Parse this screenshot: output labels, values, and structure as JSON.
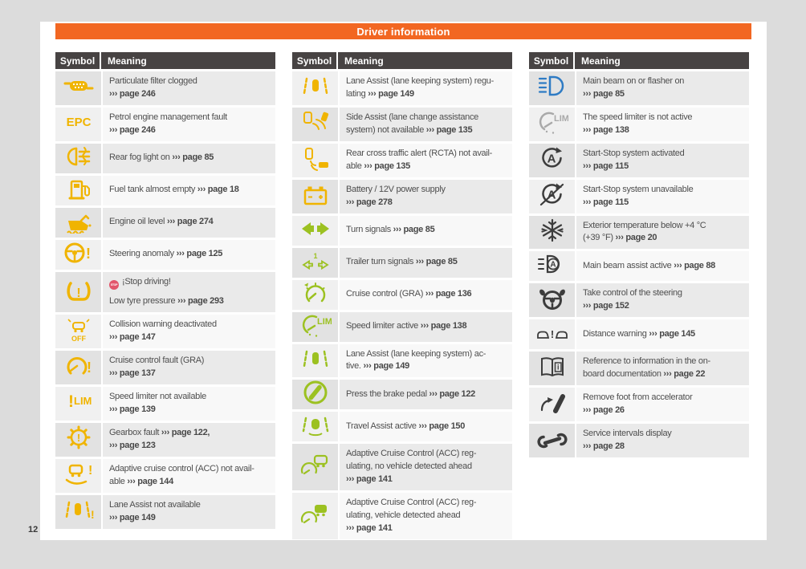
{
  "header": {
    "title": "Driver information"
  },
  "footer": {
    "page_number": "12"
  },
  "colors": {
    "accent_orange": "#f26722",
    "table_header_bg": "#474343",
    "yellow": "#f0b400",
    "green": "#9cc121",
    "blue": "#2e7bc4",
    "black": "#3c3c3c",
    "gray": "#a9a9a9",
    "stop_badge_red": "#e2566b"
  },
  "columns": [
    {
      "headers": {
        "symbol": "Symbol",
        "meaning": "Meaning"
      },
      "rows": [
        {
          "icon": "particulate-filter-icon",
          "color": "yellow",
          "lines": [
            [
              {
                "t": "Particulate filter clogged"
              }
            ],
            [
              {
                "t": "››› page 246",
                "b": true
              }
            ]
          ]
        },
        {
          "icon": "epc-icon",
          "color": "yellow",
          "lines": [
            [
              {
                "t": "Petrol engine management fault"
              }
            ],
            [
              {
                "t": "››› page 246",
                "b": true
              }
            ]
          ]
        },
        {
          "icon": "rear-fog-light-icon",
          "color": "yellow",
          "lines": [
            [
              {
                "t": "Rear fog light on "
              },
              {
                "t": "››› page 85",
                "b": true
              }
            ]
          ]
        },
        {
          "icon": "fuel-pump-icon",
          "color": "yellow",
          "lines": [
            [
              {
                "t": "Fuel tank almost empty "
              },
              {
                "t": "››› page 18",
                "b": true
              }
            ]
          ]
        },
        {
          "icon": "engine-oil-icon",
          "color": "yellow",
          "lines": [
            [
              {
                "t": "Engine oil level "
              },
              {
                "t": "››› page 274",
                "b": true
              }
            ]
          ]
        },
        {
          "icon": "steering-anomaly-icon",
          "color": "yellow",
          "lines": [
            [
              {
                "t": "Steering anomaly "
              },
              {
                "t": "››› page 125",
                "b": true
              }
            ]
          ]
        },
        {
          "icon": "tyre-pressure-icon",
          "color": "yellow",
          "badge": "STOP",
          "para_gap": true,
          "lines": [
            [
              {
                "t": "¡Stop driving!"
              }
            ],
            [
              {
                "t": "Low tyre pressure "
              },
              {
                "t": "››› page 293",
                "b": true
              }
            ]
          ]
        },
        {
          "icon": "collision-warning-off-icon",
          "color": "yellow",
          "lines": [
            [
              {
                "t": "Collision warning deactivated"
              }
            ],
            [
              {
                "t": "››› page 147",
                "b": true
              }
            ]
          ]
        },
        {
          "icon": "cruise-control-fault-icon",
          "color": "yellow",
          "lines": [
            [
              {
                "t": "Cruise control fault (GRA)"
              }
            ],
            [
              {
                "t": "››› page 137",
                "b": true
              }
            ]
          ]
        },
        {
          "icon": "speed-limiter-na-icon",
          "color": "yellow",
          "lines": [
            [
              {
                "t": "Speed limiter not available"
              }
            ],
            [
              {
                "t": "››› page 139",
                "b": true
              }
            ]
          ]
        },
        {
          "icon": "gearbox-fault-icon",
          "color": "yellow",
          "lines": [
            [
              {
                "t": "Gearbox fault "
              },
              {
                "t": "››› page 122,",
                "b": true
              }
            ],
            [
              {
                "t": "››› page 123",
                "b": true
              }
            ]
          ]
        },
        {
          "icon": "acc-not-available-icon",
          "color": "yellow",
          "lines": [
            [
              {
                "t": "Adaptive cruise control (ACC) not avail-"
              }
            ],
            [
              {
                "t": "able "
              },
              {
                "t": "››› page 144",
                "b": true
              }
            ]
          ]
        },
        {
          "icon": "lane-assist-na-icon",
          "color": "yellow",
          "lines": [
            [
              {
                "t": "Lane Assist not available"
              }
            ],
            [
              {
                "t": "››› page 149",
                "b": true
              }
            ]
          ]
        }
      ]
    },
    {
      "headers": {
        "symbol": "Symbol",
        "meaning": "Meaning"
      },
      "rows": [
        {
          "icon": "lane-assist-icon",
          "color": "yellow",
          "lines": [
            [
              {
                "t": "Lane Assist (lane keeping system) regu-"
              }
            ],
            [
              {
                "t": "lating "
              },
              {
                "t": "››› page 149",
                "b": true
              }
            ]
          ]
        },
        {
          "icon": "side-assist-icon",
          "color": "yellow",
          "lines": [
            [
              {
                "t": "Side Assist (lane change assistance"
              }
            ],
            [
              {
                "t": "system) not available "
              },
              {
                "t": "››› page 135",
                "b": true
              }
            ]
          ]
        },
        {
          "icon": "rcta-icon",
          "color": "yellow",
          "lines": [
            [
              {
                "t": "Rear cross traffic alert (RCTA) not avail-"
              }
            ],
            [
              {
                "t": "able "
              },
              {
                "t": "››› page 135",
                "b": true
              }
            ]
          ]
        },
        {
          "icon": "battery-icon",
          "color": "yellow",
          "lines": [
            [
              {
                "t": "Battery / 12V power supply"
              }
            ],
            [
              {
                "t": "››› page 278",
                "b": true
              }
            ]
          ]
        },
        {
          "icon": "turn-signals-icon",
          "color": "green",
          "lines": [
            [
              {
                "t": "Turn signals "
              },
              {
                "t": "››› page 85",
                "b": true
              }
            ]
          ]
        },
        {
          "icon": "trailer-turn-signals-icon",
          "color": "green",
          "lines": [
            [
              {
                "t": "Trailer turn signals "
              },
              {
                "t": "››› page 85",
                "b": true
              }
            ]
          ]
        },
        {
          "icon": "cruise-control-icon",
          "color": "green",
          "lines": [
            [
              {
                "t": "Cruise control (GRA) "
              },
              {
                "t": "››› page 136",
                "b": true
              }
            ]
          ]
        },
        {
          "icon": "speed-limiter-active-icon",
          "color": "green",
          "lines": [
            [
              {
                "t": "Speed limiter active "
              },
              {
                "t": "››› page 138",
                "b": true
              }
            ]
          ]
        },
        {
          "icon": "lane-assist-active-icon",
          "color": "green",
          "lines": [
            [
              {
                "t": "Lane Assist (lane keeping system) ac-"
              }
            ],
            [
              {
                "t": "tive. "
              },
              {
                "t": "››› page 149",
                "b": true
              }
            ]
          ]
        },
        {
          "icon": "brake-pedal-icon",
          "color": "green",
          "lines": [
            [
              {
                "t": "Press the brake pedal "
              },
              {
                "t": "››› page 122",
                "b": true
              }
            ]
          ]
        },
        {
          "icon": "travel-assist-icon",
          "color": "green",
          "lines": [
            [
              {
                "t": "Travel Assist active "
              },
              {
                "t": "››› page 150",
                "b": true
              }
            ]
          ]
        },
        {
          "icon": "acc-regulating-icon",
          "color": "green",
          "lines": [
            [
              {
                "t": "Adaptive Cruise Control (ACC) reg-"
              }
            ],
            [
              {
                "t": "ulating, no vehicle detected ahead"
              }
            ],
            [
              {
                "t": "››› page 141",
                "b": true
              }
            ]
          ]
        },
        {
          "icon": "acc-vehicle-detected-icon",
          "color": "green",
          "lines": [
            [
              {
                "t": "Adaptive Cruise Control (ACC) reg-"
              }
            ],
            [
              {
                "t": "ulating, vehicle detected ahead"
              }
            ],
            [
              {
                "t": "››› page 141",
                "b": true
              }
            ]
          ]
        }
      ]
    },
    {
      "headers": {
        "symbol": "Symbol",
        "meaning": "Meaning"
      },
      "rows": [
        {
          "icon": "main-beam-icon",
          "color": "blue",
          "lines": [
            [
              {
                "t": "Main beam on or flasher on"
              }
            ],
            [
              {
                "t": "››› page 85",
                "b": true
              }
            ]
          ]
        },
        {
          "icon": "speed-limiter-inactive-icon",
          "color": "gray",
          "lines": [
            [
              {
                "t": "The speed limiter is not active"
              }
            ],
            [
              {
                "t": "››› page 138",
                "b": true
              }
            ]
          ]
        },
        {
          "icon": "start-stop-active-icon",
          "color": "black",
          "lines": [
            [
              {
                "t": "Start-Stop system activated"
              }
            ],
            [
              {
                "t": "››› page 115",
                "b": true
              }
            ]
          ]
        },
        {
          "icon": "start-stop-unavailable-icon",
          "color": "black",
          "lines": [
            [
              {
                "t": "Start-Stop system unavailable"
              }
            ],
            [
              {
                "t": "››› page 115",
                "b": true
              }
            ]
          ]
        },
        {
          "icon": "snowflake-icon",
          "color": "black",
          "lines": [
            [
              {
                "t": "Exterior temperature below +4 °C"
              }
            ],
            [
              {
                "t": "(+39 °F) "
              },
              {
                "t": "››› page 20",
                "b": true
              }
            ]
          ]
        },
        {
          "icon": "main-beam-assist-icon",
          "color": "black",
          "lines": [
            [
              {
                "t": "Main beam assist active "
              },
              {
                "t": "››› page 88",
                "b": true
              }
            ]
          ]
        },
        {
          "icon": "steering-takeover-icon",
          "color": "black",
          "lines": [
            [
              {
                "t": "Take control of the steering"
              }
            ],
            [
              {
                "t": "››› page 152",
                "b": true
              }
            ]
          ]
        },
        {
          "icon": "distance-warning-icon",
          "color": "black",
          "lines": [
            [
              {
                "t": "Distance warning "
              },
              {
                "t": "››› page 145",
                "b": true
              }
            ]
          ]
        },
        {
          "icon": "onboard-doc-icon",
          "color": "black",
          "lines": [
            [
              {
                "t": "Reference to information in the on-"
              }
            ],
            [
              {
                "t": "board documentation "
              },
              {
                "t": "››› page 22",
                "b": true
              }
            ]
          ]
        },
        {
          "icon": "foot-accelerator-icon",
          "color": "black",
          "lines": [
            [
              {
                "t": "Remove foot from accelerator"
              }
            ],
            [
              {
                "t": "››› page 26",
                "b": true
              }
            ]
          ]
        },
        {
          "icon": "service-wrench-icon",
          "color": "black",
          "lines": [
            [
              {
                "t": "Service intervals display"
              }
            ],
            [
              {
                "t": "››› page 28",
                "b": true
              }
            ]
          ]
        }
      ]
    }
  ]
}
